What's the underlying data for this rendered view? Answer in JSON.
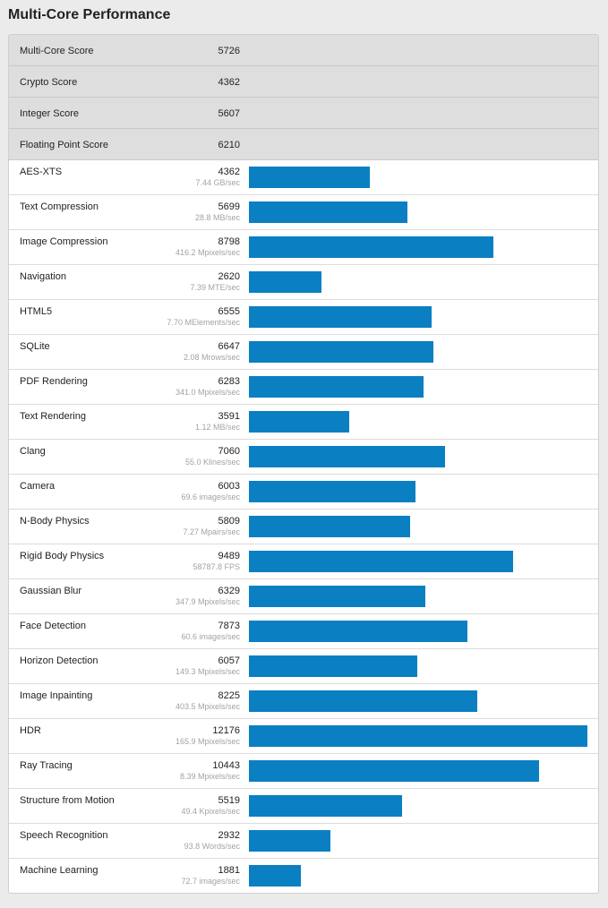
{
  "page": {
    "title": "Multi-Core Performance"
  },
  "colors": {
    "bar": "#0a7fc2",
    "summary_bg": "#dedede",
    "page_bg": "#ebebeb"
  },
  "scale_max": 12176,
  "summary": [
    {
      "name": "Multi-Core Score",
      "score": "5726"
    },
    {
      "name": "Crypto Score",
      "score": "4362"
    },
    {
      "name": "Integer Score",
      "score": "5607"
    },
    {
      "name": "Floating Point Score",
      "score": "6210"
    }
  ],
  "benchmarks": [
    {
      "name": "AES-XTS",
      "score": "4362",
      "rate": "7.44 GB/sec",
      "value": 4362
    },
    {
      "name": "Text Compression",
      "score": "5699",
      "rate": "28.8 MB/sec",
      "value": 5699
    },
    {
      "name": "Image Compression",
      "score": "8798",
      "rate": "416.2 Mpixels/sec",
      "value": 8798
    },
    {
      "name": "Navigation",
      "score": "2620",
      "rate": "7.39 MTE/sec",
      "value": 2620
    },
    {
      "name": "HTML5",
      "score": "6555",
      "rate": "7.70 MElements/sec",
      "value": 6555
    },
    {
      "name": "SQLite",
      "score": "6647",
      "rate": "2.08 Mrows/sec",
      "value": 6647
    },
    {
      "name": "PDF Rendering",
      "score": "6283",
      "rate": "341.0 Mpixels/sec",
      "value": 6283
    },
    {
      "name": "Text Rendering",
      "score": "3591",
      "rate": "1.12 MB/sec",
      "value": 3591
    },
    {
      "name": "Clang",
      "score": "7060",
      "rate": "55.0 Klines/sec",
      "value": 7060
    },
    {
      "name": "Camera",
      "score": "6003",
      "rate": "69.6 images/sec",
      "value": 6003
    },
    {
      "name": "N-Body Physics",
      "score": "5809",
      "rate": "7.27 Mpairs/sec",
      "value": 5809
    },
    {
      "name": "Rigid Body Physics",
      "score": "9489",
      "rate": "58787.8 FPS",
      "value": 9489
    },
    {
      "name": "Gaussian Blur",
      "score": "6329",
      "rate": "347.9 Mpixels/sec",
      "value": 6329
    },
    {
      "name": "Face Detection",
      "score": "7873",
      "rate": "60.6 images/sec",
      "value": 7873
    },
    {
      "name": "Horizon Detection",
      "score": "6057",
      "rate": "149.3 Mpixels/sec",
      "value": 6057
    },
    {
      "name": "Image Inpainting",
      "score": "8225",
      "rate": "403.5 Mpixels/sec",
      "value": 8225
    },
    {
      "name": "HDR",
      "score": "12176",
      "rate": "165.9 Mpixels/sec",
      "value": 12176
    },
    {
      "name": "Ray Tracing",
      "score": "10443",
      "rate": "8.39 Mpixels/sec",
      "value": 10443
    },
    {
      "name": "Structure from Motion",
      "score": "5519",
      "rate": "49.4 Kpixels/sec",
      "value": 5519
    },
    {
      "name": "Speech Recognition",
      "score": "2932",
      "rate": "93.8 Words/sec",
      "value": 2932
    },
    {
      "name": "Machine Learning",
      "score": "1881",
      "rate": "72.7 images/sec",
      "value": 1881
    }
  ]
}
